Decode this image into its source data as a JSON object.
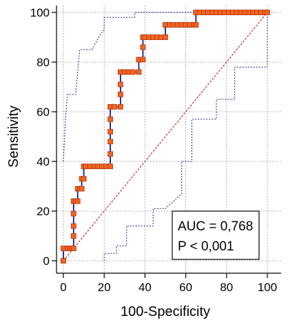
{
  "chart_data": {
    "type": "line",
    "title": "",
    "xlabel": "100-Specificity",
    "ylabel": "Sensitivity",
    "xlim": [
      0,
      100
    ],
    "ylim": [
      0,
      100
    ],
    "xticks": [
      "0",
      "20",
      "40",
      "60",
      "80",
      "100"
    ],
    "yticks": [
      "0",
      "20",
      "40",
      "60",
      "80",
      "100"
    ],
    "grid": true,
    "colors": {
      "roc_line": "#1a1a8c",
      "marker_fill": "#f26522",
      "marker_edge": "#b03010",
      "reference_line": "#cc0000",
      "ci_band": "#1a1a8c",
      "grid": "#999999"
    },
    "series": [
      {
        "values": [
          [
            0,
            0
          ],
          [
            0,
            5
          ],
          [
            2,
            5
          ],
          [
            3,
            5
          ],
          [
            4,
            5
          ],
          [
            5,
            5
          ],
          [
            5,
            10
          ],
          [
            5,
            14
          ],
          [
            5,
            19
          ],
          [
            5,
            24
          ],
          [
            6,
            24
          ],
          [
            7,
            24
          ],
          [
            7,
            29
          ],
          [
            8,
            29
          ],
          [
            9,
            29
          ],
          [
            9,
            33
          ],
          [
            10,
            33
          ],
          [
            10,
            38
          ],
          [
            11,
            38
          ],
          [
            13,
            38
          ],
          [
            15,
            38
          ],
          [
            17,
            38
          ],
          [
            19,
            38
          ],
          [
            21,
            38
          ],
          [
            23,
            38
          ],
          [
            23,
            43
          ],
          [
            23,
            48
          ],
          [
            23,
            52
          ],
          [
            23,
            57
          ],
          [
            23,
            62
          ],
          [
            25,
            62
          ],
          [
            28,
            62
          ],
          [
            28,
            67
          ],
          [
            28,
            71
          ],
          [
            28,
            76
          ],
          [
            30,
            76
          ],
          [
            32,
            76
          ],
          [
            34,
            76
          ],
          [
            37,
            76
          ],
          [
            37,
            81
          ],
          [
            39,
            81
          ],
          [
            39,
            86
          ],
          [
            39,
            90
          ],
          [
            40,
            90
          ],
          [
            42,
            90
          ],
          [
            44,
            90
          ],
          [
            46,
            90
          ],
          [
            48,
            90
          ],
          [
            50,
            90
          ],
          [
            50,
            95
          ],
          [
            52,
            95
          ],
          [
            54,
            95
          ],
          [
            56,
            95
          ],
          [
            58,
            95
          ],
          [
            60,
            95
          ],
          [
            62,
            95
          ],
          [
            64,
            95
          ],
          [
            65,
            95
          ],
          [
            65,
            100
          ],
          [
            67,
            100
          ],
          [
            69,
            100
          ],
          [
            71,
            100
          ],
          [
            73,
            100
          ],
          [
            75,
            100
          ],
          [
            77,
            100
          ],
          [
            79,
            100
          ],
          [
            81,
            100
          ],
          [
            83,
            100
          ],
          [
            85,
            100
          ],
          [
            87,
            100
          ],
          [
            89,
            100
          ],
          [
            91,
            100
          ],
          [
            93,
            100
          ],
          [
            95,
            100
          ],
          [
            97,
            100
          ],
          [
            99,
            100
          ],
          [
            100,
            100
          ]
        ]
      }
    ],
    "ci_upper": [
      [
        0,
        40
      ],
      [
        1,
        57
      ],
      [
        2,
        67
      ],
      [
        6,
        67
      ],
      [
        8,
        85
      ],
      [
        14,
        85
      ],
      [
        18,
        91
      ],
      [
        20,
        93
      ],
      [
        20,
        98
      ],
      [
        35,
        98
      ],
      [
        35,
        100
      ],
      [
        100,
        100
      ]
    ],
    "ci_lower": [
      [
        20,
        0
      ],
      [
        20,
        3
      ],
      [
        26,
        3
      ],
      [
        26,
        6
      ],
      [
        31,
        6
      ],
      [
        31,
        14
      ],
      [
        44,
        14
      ],
      [
        44,
        21
      ],
      [
        50,
        21
      ],
      [
        54,
        24
      ],
      [
        58,
        27
      ],
      [
        58,
        40
      ],
      [
        63,
        40
      ],
      [
        63,
        57
      ],
      [
        75,
        57
      ],
      [
        75,
        65
      ],
      [
        84,
        65
      ],
      [
        84,
        78
      ],
      [
        100,
        78
      ],
      [
        100,
        100
      ]
    ],
    "reference_line": [
      [
        0,
        0
      ],
      [
        100,
        100
      ]
    ]
  },
  "annotation": {
    "auc": "AUC = 0,768",
    "p_value": "P < 0,001"
  }
}
